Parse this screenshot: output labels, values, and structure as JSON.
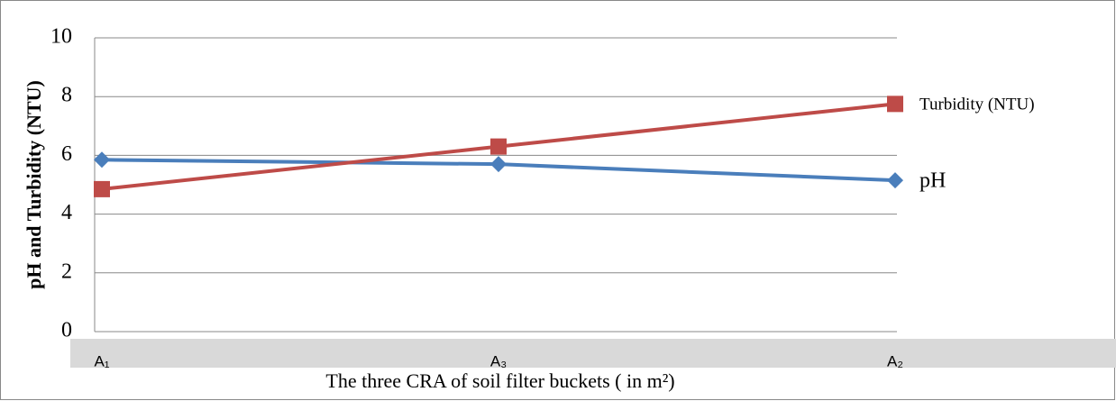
{
  "chart_data": {
    "type": "line",
    "x_label": "The three CRA of soil filter buckets ( in m²)",
    "y_label": "pH and Turbidity (NTU)",
    "categories": [
      "A₁",
      "A₃",
      "A₂"
    ],
    "series": [
      {
        "name": "pH",
        "color": "#4a7ebb",
        "marker": "diamond",
        "values": [
          5.85,
          5.7,
          5.15
        ]
      },
      {
        "name": "Turbidity (NTU)",
        "color": "#be4b48",
        "marker": "square",
        "values": [
          4.85,
          6.3,
          7.75
        ]
      }
    ],
    "ylim": [
      0,
      10
    ],
    "yticks": [
      0,
      2,
      4,
      6,
      8,
      10
    ],
    "grid": true
  }
}
